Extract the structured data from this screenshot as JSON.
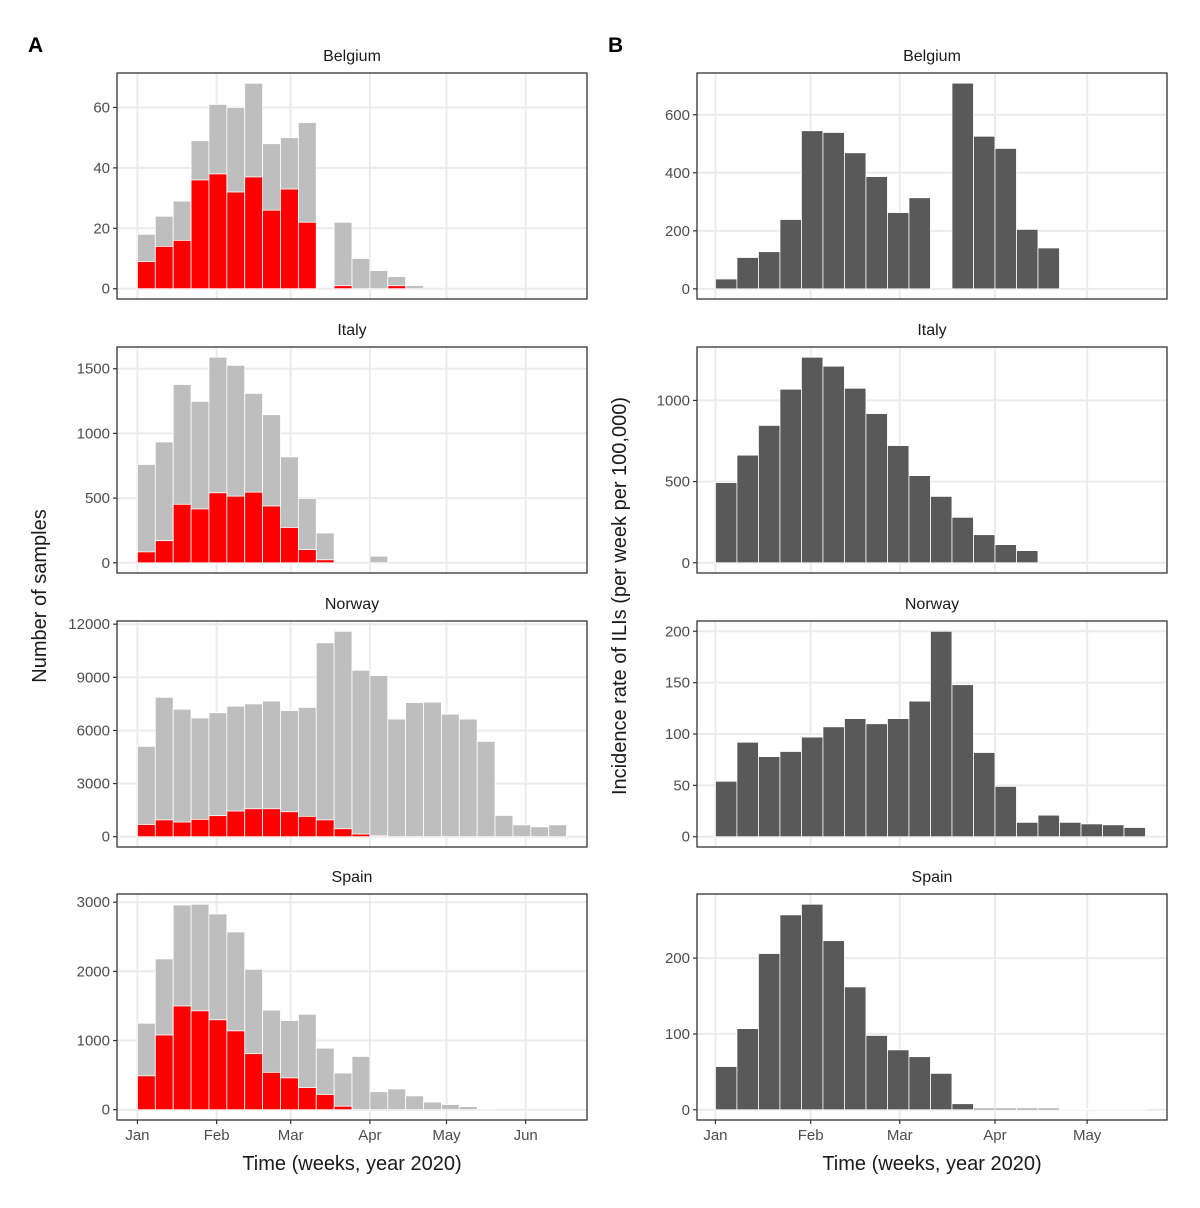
{
  "panel_labels": [
    "A",
    "B"
  ],
  "axis_titles": {
    "a_y": "Number of samples",
    "b_y": "Incidence rate of ILIs (per week per 100,000)",
    "x": "Time (weeks, year 2020)"
  },
  "colors": {
    "total": "#bebebe",
    "positive": "#ff0000",
    "incidence": "#595959",
    "grid": "#ebebeb"
  },
  "chart_data": [
    {
      "type": "bar",
      "stacked": true,
      "panel": "A",
      "weeks": [
        "2020-01-01",
        "2020-01-08",
        "2020-01-15",
        "2020-01-22",
        "2020-01-29",
        "2020-02-05",
        "2020-02-12",
        "2020-02-19",
        "2020-02-26",
        "2020-03-04",
        "2020-03-11",
        "2020-03-18",
        "2020-03-25",
        "2020-04-01",
        "2020-04-08",
        "2020-04-15",
        "2020-04-22",
        "2020-04-29",
        "2020-05-06",
        "2020-05-13",
        "2020-05-20",
        "2020-05-27",
        "2020-06-03",
        "2020-06-10"
      ],
      "xlim": [
        "2019-12-24",
        "2020-06-25"
      ],
      "x_ticks": [
        {
          "date": "2020-01-01",
          "label": "Jan"
        },
        {
          "date": "2020-02-01",
          "label": "Feb"
        },
        {
          "date": "2020-03-01",
          "label": "Mar"
        },
        {
          "date": "2020-04-01",
          "label": "Apr"
        },
        {
          "date": "2020-05-01",
          "label": "May"
        },
        {
          "date": "2020-06-01",
          "label": "Jun"
        }
      ],
      "grid": true,
      "facets": [
        {
          "title": "Belgium",
          "ylim": [
            -3.4,
            71.4
          ],
          "y_ticks": [
            0,
            20,
            40,
            60
          ],
          "total": [
            18,
            24,
            29,
            49,
            61,
            60,
            68,
            48,
            50,
            55,
            null,
            22,
            10,
            6,
            4,
            1
          ],
          "positive": [
            9,
            14,
            16,
            36,
            38,
            32,
            37,
            26,
            33,
            22,
            null,
            1,
            0,
            0,
            1,
            0
          ]
        },
        {
          "title": "Italy",
          "ylim": [
            -79,
            1668
          ],
          "y_ticks": [
            0,
            500,
            1000,
            1500
          ],
          "total": [
            760,
            934,
            1378,
            1247,
            1589,
            1526,
            1309,
            1145,
            819,
            497,
            230,
            null,
            null,
            51
          ],
          "positive": [
            84,
            171,
            452,
            416,
            541,
            515,
            546,
            439,
            273,
            102,
            23,
            null,
            null,
            0
          ]
        },
        {
          "title": "Norway",
          "ylim": [
            -580,
            12180
          ],
          "y_ticks": [
            0,
            3000,
            6000,
            9000,
            12000
          ],
          "total": [
            5100,
            7870,
            7200,
            6700,
            7000,
            7370,
            7500,
            7660,
            7120,
            7300,
            10950,
            11600,
            9400,
            9100,
            6640,
            7570,
            7600,
            6920,
            6640,
            5380,
            1200,
            670,
            560,
            670
          ],
          "positive": [
            690,
            950,
            830,
            980,
            1190,
            1450,
            1580,
            1580,
            1410,
            1150,
            950,
            450,
            150,
            50,
            0,
            0,
            0,
            0,
            0,
            0,
            0,
            0,
            0,
            0
          ]
        },
        {
          "title": "Spain",
          "ylim": [
            -149,
            3119
          ],
          "y_ticks": [
            0,
            1000,
            2000,
            3000
          ],
          "total": [
            1250,
            2180,
            2960,
            2970,
            2830,
            2570,
            2030,
            1440,
            1290,
            1380,
            890,
            530,
            770,
            260,
            300,
            200,
            110,
            75,
            45,
            15
          ],
          "positive": [
            490,
            1080,
            1500,
            1430,
            1300,
            1140,
            810,
            540,
            460,
            320,
            220,
            50,
            0,
            0,
            0,
            0,
            0,
            0,
            0,
            0
          ]
        }
      ]
    },
    {
      "type": "bar",
      "stacked": false,
      "panel": "B",
      "weeks": [
        "2020-01-01",
        "2020-01-08",
        "2020-01-15",
        "2020-01-22",
        "2020-01-29",
        "2020-02-05",
        "2020-02-12",
        "2020-02-19",
        "2020-02-26",
        "2020-03-04",
        "2020-03-11",
        "2020-03-18",
        "2020-03-25",
        "2020-04-01",
        "2020-04-08",
        "2020-04-15",
        "2020-04-22",
        "2020-04-29",
        "2020-05-06",
        "2020-05-13"
      ],
      "xlim": [
        "2019-12-26",
        "2020-05-27"
      ],
      "x_ticks": [
        {
          "date": "2020-01-01",
          "label": "Jan"
        },
        {
          "date": "2020-02-01",
          "label": "Feb"
        },
        {
          "date": "2020-03-01",
          "label": "Mar"
        },
        {
          "date": "2020-04-01",
          "label": "Apr"
        },
        {
          "date": "2020-05-01",
          "label": "May"
        }
      ],
      "grid": true,
      "facets": [
        {
          "title": "Belgium",
          "ylim": [
            -35,
            744
          ],
          "y_ticks": [
            0,
            200,
            400,
            600
          ],
          "values": [
            34,
            108,
            128,
            239,
            545,
            539,
            469,
            387,
            263,
            314,
            null,
            709,
            526,
            484,
            205,
            141
          ]
        },
        {
          "title": "Italy",
          "ylim": [
            -63,
            1329
          ],
          "y_ticks": [
            0,
            500,
            1000
          ],
          "values": [
            494,
            663,
            846,
            1069,
            1266,
            1211,
            1075,
            919,
            722,
            537,
            409,
            280,
            173,
            112,
            75
          ]
        },
        {
          "title": "Norway",
          "ylim": [
            -10,
            210
          ],
          "y_ticks": [
            0,
            50,
            100,
            150,
            200
          ],
          "values": [
            54,
            92,
            78,
            83,
            97,
            107,
            115,
            110,
            115,
            132,
            200,
            148,
            82,
            49,
            14,
            21,
            14,
            12.5,
            11.6,
            9
          ]
        },
        {
          "title": "Spain",
          "ylim": [
            -13.5,
            284.5
          ],
          "y_ticks": [
            0,
            100,
            200
          ],
          "values": [
            57,
            107,
            206,
            257,
            271,
            223,
            162,
            98,
            79,
            70,
            48,
            8,
            2,
            2,
            2,
            2,
            1,
            1,
            1,
            1
          ]
        }
      ]
    }
  ]
}
